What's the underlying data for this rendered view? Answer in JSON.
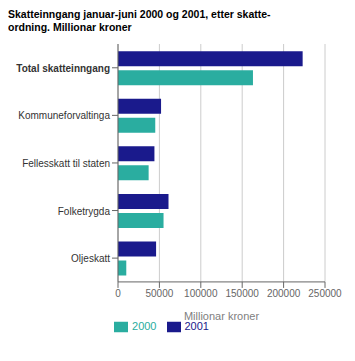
{
  "chart_data": {
    "type": "bar",
    "orientation": "horizontal",
    "title": "Skatteinngang januar-juni 2000 og 2001, etter skatte-\nordning. Millionar kroner",
    "categories": [
      "Total skatteinngang",
      "Kommuneforvaltinga",
      "Fellesskatt til staten",
      "Folketrygda",
      "Oljeskatt"
    ],
    "series": [
      {
        "name": "2001",
        "color": "#1a1a8c",
        "values": [
          223000,
          52000,
          44000,
          61000,
          46000
        ]
      },
      {
        "name": "2000",
        "color": "#2aada0",
        "values": [
          163000,
          45000,
          37000,
          55000,
          10000
        ]
      }
    ],
    "xlabel": "Millionar kroner",
    "xlim": [
      0,
      250000
    ],
    "xticks": [
      0,
      50000,
      100000,
      150000,
      200000,
      250000
    ],
    "grid": true,
    "legend": "bottom"
  }
}
